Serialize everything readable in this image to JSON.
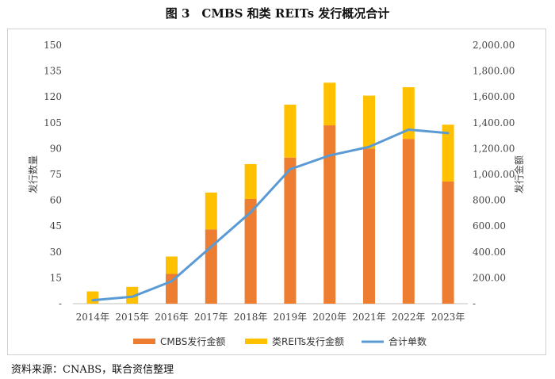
{
  "figure_title": "图 3　CMBS 和类 REITs 发行概况合计",
  "source_note": "资料来源：CNABS，联合资信整理",
  "colors": {
    "cmbs": "#ED7D31",
    "reits": "#FFC000",
    "line": "#5B9BD5",
    "axis": "#bfbfbf"
  },
  "chart_data": {
    "type": "bar",
    "stacked": true,
    "title": "图 3　CMBS 和类 REITs 发行概况合计",
    "categories": [
      "2014年",
      "2015年",
      "2016年",
      "2017年",
      "2018年",
      "2019年",
      "2020年",
      "2021年",
      "2022年",
      "2023年"
    ],
    "series": [
      {
        "name": "CMBS发行金额",
        "axis": "right",
        "values": [
          0,
          0,
          230,
          575,
          810,
          1130,
          1380,
          1200,
          1275,
          945
        ]
      },
      {
        "name": "类REITs发行金额",
        "axis": "right",
        "values": [
          95,
          130,
          135,
          285,
          270,
          410,
          330,
          410,
          400,
          440
        ]
      },
      {
        "name": "合计单数",
        "type": "line",
        "axis": "left",
        "values": [
          2,
          4,
          13,
          33,
          53,
          78,
          86,
          91,
          101,
          99
        ]
      }
    ],
    "ylabel_left": "发行数量",
    "ylabel_right": "发行金额",
    "ylim_left": [
      0,
      150
    ],
    "ylim_right": [
      0,
      2000
    ],
    "yticks_left": [
      "-",
      "15",
      "30",
      "45",
      "60",
      "75",
      "90",
      "105",
      "120",
      "135",
      "150"
    ],
    "yticks_right": [
      "-",
      "200.00",
      "400.00",
      "600.00",
      "800.00",
      "1,000.00",
      "1,200.00",
      "1,400.00",
      "1,600.00",
      "1,800.00",
      "2,000.00"
    ],
    "legend": [
      "CMBS发行金额",
      "类REITs发行金额",
      "合计单数"
    ],
    "legend_position": "bottom",
    "grid": false
  }
}
